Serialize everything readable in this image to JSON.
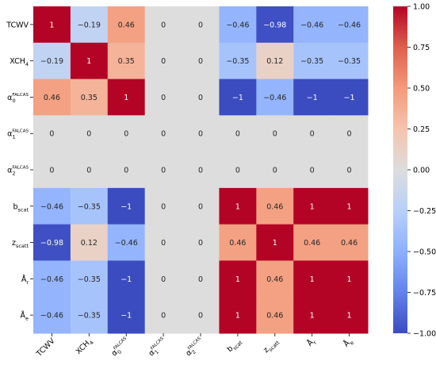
{
  "chart_data": {
    "type": "heatmap",
    "title": "",
    "xlabel": "",
    "ylabel": "",
    "row_labels": [
      {
        "base": "TCWV",
        "sub": "",
        "sup": ""
      },
      {
        "base": "XCH",
        "sub": "4",
        "sup": ""
      },
      {
        "base": "α",
        "sub": "0",
        "sup": "FALCAS"
      },
      {
        "base": "α",
        "sub": "1",
        "sup": "FALCAS"
      },
      {
        "base": "α",
        "sub": "2",
        "sup": "FALCAS"
      },
      {
        "base": "b",
        "sub": "scat",
        "sup": ""
      },
      {
        "base": "z",
        "sub": "scatt",
        "sup": ""
      },
      {
        "base": "Å",
        "sub": "r",
        "sup": ""
      },
      {
        "base": "Å",
        "sub": "e",
        "sup": ""
      }
    ],
    "col_labels": [
      {
        "base": "TCWV",
        "sub": "",
        "sup": ""
      },
      {
        "base": "XCH",
        "sub": "4",
        "sup": ""
      },
      {
        "base": "α",
        "sub": "0",
        "sup": "FALCAS"
      },
      {
        "base": "α",
        "sub": "1",
        "sup": "FALCAS"
      },
      {
        "base": "α",
        "sub": "2",
        "sup": "FALCAS"
      },
      {
        "base": "b",
        "sub": "scat",
        "sup": ""
      },
      {
        "base": "z",
        "sub": "scatt",
        "sup": ""
      },
      {
        "base": "Å",
        "sub": "r",
        "sup": ""
      },
      {
        "base": "Å",
        "sub": "e",
        "sup": ""
      }
    ],
    "values": [
      [
        1,
        -0.19,
        0.46,
        0,
        0,
        -0.46,
        -0.98,
        -0.46,
        -0.46
      ],
      [
        -0.19,
        1,
        0.35,
        0,
        0,
        -0.35,
        0.12,
        -0.35,
        -0.35
      ],
      [
        0.46,
        0.35,
        1,
        0,
        0,
        -1,
        -0.46,
        -1,
        -1
      ],
      [
        0,
        0,
        0,
        0,
        0,
        0,
        0,
        0,
        0
      ],
      [
        0,
        0,
        0,
        0,
        0,
        0,
        0,
        0,
        0
      ],
      [
        -0.46,
        -0.35,
        -1,
        0,
        0,
        1,
        0.46,
        1,
        1
      ],
      [
        -0.98,
        0.12,
        -0.46,
        0,
        0,
        0.46,
        1,
        0.46,
        0.46
      ],
      [
        -0.46,
        -0.35,
        -1,
        0,
        0,
        1,
        0.46,
        1,
        1
      ],
      [
        -0.46,
        -0.35,
        -1,
        0,
        0,
        1,
        0.46,
        1,
        1
      ]
    ],
    "cell_labels": [
      [
        "1",
        "−0.19",
        "0.46",
        "0",
        "0",
        "−0.46",
        "−0.98",
        "−0.46",
        "−0.46"
      ],
      [
        "−0.19",
        "1",
        "0.35",
        "0",
        "0",
        "−0.35",
        "0.12",
        "−0.35",
        "−0.35"
      ],
      [
        "0.46",
        "0.35",
        "1",
        "0",
        "0",
        "−1",
        "−0.46",
        "−1",
        "−1"
      ],
      [
        "0",
        "0",
        "0",
        "0",
        "0",
        "0",
        "0",
        "0",
        "0"
      ],
      [
        "0",
        "0",
        "0",
        "0",
        "0",
        "0",
        "0",
        "0",
        "0"
      ],
      [
        "−0.46",
        "−0.35",
        "−1",
        "0",
        "0",
        "1",
        "0.46",
        "1",
        "1"
      ],
      [
        "−0.98",
        "0.12",
        "−0.46",
        "0",
        "0",
        "0.46",
        "1",
        "0.46",
        "0.46"
      ],
      [
        "−0.46",
        "−0.35",
        "−1",
        "0",
        "0",
        "1",
        "0.46",
        "1",
        "1"
      ],
      [
        "−0.46",
        "−0.35",
        "−1",
        "0",
        "0",
        "1",
        "0.46",
        "1",
        "1"
      ]
    ],
    "colorbar": {
      "colormap": "coolwarm",
      "range": [
        -1,
        1
      ],
      "ticks": [
        1,
        0.75,
        0.5,
        0.25,
        0,
        -0.25,
        -0.5,
        -0.75,
        -1
      ],
      "tick_labels": [
        "1.00",
        "0.75",
        "0.50",
        "0.25",
        "0.00",
        "−0.25",
        "−0.50",
        "−0.75",
        "−1.00"
      ],
      "placement": "right"
    },
    "grid": false,
    "x_tick_rotation": "45 degrees"
  }
}
